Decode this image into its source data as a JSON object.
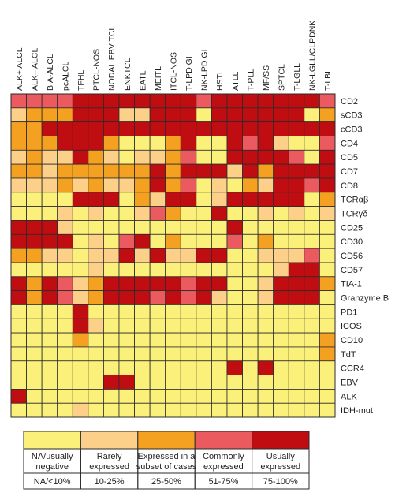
{
  "colors": {
    "na": "#fbf07a",
    "rare": "#fcd089",
    "subset": "#f4a021",
    "common": "#ea5a5f",
    "usual": "#c00d12",
    "grid": "#2b2b2b",
    "text": "#231f20"
  },
  "chart_data": {
    "type": "heatmap",
    "columns": [
      "ALK+ ALCL",
      "ALK– ALCL",
      "BIA-ALCL",
      "pcALCL",
      "TFHL",
      "PTCL-NOS",
      "NODAL EBV TCL",
      "ENKTCL",
      "EATL",
      "MEITL",
      "ITCL-NOS",
      "T-LPD GI",
      "NK-LPD GI",
      "HSTL",
      "ATLL",
      "T-PLL",
      "MF/SS",
      "SPTCL",
      "T-LGLL",
      "NK-LGLL/CLPDNK",
      "T-LBL"
    ],
    "rows": [
      "CD2",
      "sCD3",
      "cCD3",
      "CD4",
      "CD5",
      "CD7",
      "CD8",
      "TCRαβ",
      "TCRγδ",
      "CD25",
      "CD30",
      "CD56",
      "CD57",
      "TIA-1",
      "Granzyme B",
      "PD1",
      "ICOS",
      "CD10",
      "TdT",
      "CCR4",
      "EBV",
      "ALK",
      "IDH-mut"
    ],
    "matrix": [
      [
        3,
        3,
        3,
        3,
        4,
        4,
        4,
        4,
        4,
        4,
        4,
        4,
        3,
        4,
        4,
        4,
        4,
        4,
        4,
        4,
        3
      ],
      [
        1,
        2,
        2,
        2,
        4,
        4,
        4,
        1,
        1,
        4,
        4,
        4,
        0,
        4,
        4,
        4,
        4,
        4,
        4,
        0,
        2
      ],
      [
        2,
        2,
        4,
        4,
        4,
        4,
        4,
        4,
        4,
        4,
        4,
        4,
        4,
        4,
        4,
        4,
        4,
        4,
        4,
        4,
        4
      ],
      [
        2,
        2,
        2,
        4,
        4,
        4,
        2,
        0,
        0,
        0,
        2,
        4,
        0,
        0,
        4,
        3,
        4,
        1,
        0,
        0,
        3
      ],
      [
        1,
        2,
        1,
        1,
        4,
        2,
        1,
        0,
        1,
        1,
        2,
        3,
        0,
        0,
        4,
        4,
        4,
        4,
        3,
        0,
        4
      ],
      [
        2,
        2,
        1,
        2,
        2,
        2,
        2,
        2,
        2,
        4,
        2,
        4,
        4,
        4,
        1,
        4,
        2,
        4,
        4,
        4,
        4
      ],
      [
        1,
        1,
        1,
        2,
        1,
        2,
        1,
        1,
        2,
        4,
        2,
        3,
        0,
        1,
        0,
        2,
        1,
        4,
        4,
        3,
        4
      ],
      [
        0,
        0,
        0,
        0,
        4,
        4,
        4,
        0,
        2,
        1,
        4,
        4,
        0,
        1,
        4,
        4,
        4,
        4,
        4,
        0,
        2
      ],
      [
        0,
        0,
        0,
        1,
        0,
        1,
        0,
        0,
        1,
        3,
        2,
        0,
        0,
        4,
        0,
        0,
        1,
        0,
        1,
        0,
        1
      ],
      [
        4,
        4,
        4,
        1,
        0,
        0,
        0,
        0,
        0,
        0,
        0,
        0,
        0,
        0,
        4,
        0,
        0,
        0,
        0,
        0,
        0
      ],
      [
        4,
        4,
        4,
        4,
        0,
        1,
        0,
        3,
        4,
        0,
        2,
        0,
        0,
        0,
        3,
        0,
        2,
        0,
        0,
        0,
        0
      ],
      [
        2,
        2,
        1,
        1,
        0,
        1,
        1,
        4,
        1,
        4,
        1,
        1,
        4,
        4,
        0,
        0,
        1,
        1,
        1,
        3,
        0
      ],
      [
        0,
        0,
        0,
        0,
        0,
        1,
        0,
        0,
        0,
        0,
        0,
        0,
        0,
        0,
        0,
        0,
        0,
        1,
        4,
        4,
        0
      ],
      [
        4,
        2,
        4,
        3,
        1,
        2,
        4,
        4,
        4,
        4,
        4,
        3,
        4,
        4,
        0,
        0,
        1,
        4,
        4,
        4,
        2
      ],
      [
        4,
        2,
        4,
        3,
        1,
        2,
        4,
        4,
        4,
        3,
        4,
        3,
        4,
        1,
        0,
        0,
        1,
        4,
        4,
        4,
        0
      ],
      [
        0,
        0,
        0,
        0,
        4,
        0,
        0,
        0,
        0,
        0,
        0,
        0,
        0,
        0,
        0,
        0,
        0,
        0,
        0,
        0,
        0
      ],
      [
        0,
        0,
        0,
        0,
        4,
        1,
        0,
        0,
        0,
        0,
        0,
        0,
        0,
        0,
        0,
        0,
        0,
        0,
        0,
        0,
        0
      ],
      [
        0,
        0,
        0,
        0,
        2,
        0,
        0,
        0,
        0,
        0,
        0,
        0,
        0,
        0,
        0,
        0,
        0,
        0,
        0,
        0,
        2
      ],
      [
        0,
        0,
        0,
        0,
        0,
        0,
        0,
        0,
        0,
        0,
        0,
        0,
        0,
        0,
        0,
        0,
        0,
        0,
        0,
        0,
        2
      ],
      [
        0,
        0,
        0,
        0,
        0,
        0,
        0,
        0,
        0,
        0,
        0,
        0,
        0,
        0,
        4,
        0,
        4,
        0,
        0,
        0,
        0
      ],
      [
        0,
        0,
        0,
        0,
        0,
        0,
        4,
        4,
        0,
        0,
        0,
        0,
        0,
        0,
        0,
        0,
        0,
        0,
        0,
        0,
        0
      ],
      [
        4,
        0,
        0,
        0,
        0,
        0,
        0,
        0,
        0,
        0,
        0,
        0,
        0,
        0,
        0,
        0,
        0,
        0,
        0,
        0,
        0
      ],
      [
        0,
        0,
        0,
        0,
        1,
        0,
        0,
        0,
        0,
        0,
        0,
        0,
        0,
        0,
        0,
        0,
        0,
        0,
        0,
        0,
        0
      ]
    ],
    "legend": [
      {
        "label": "NA/usually negative",
        "range": "NA/<10%",
        "color_key": "na"
      },
      {
        "label": "Rarely expressed",
        "range": "10-25%",
        "color_key": "rare"
      },
      {
        "label": "Expressed in a subset of cases",
        "range": "25-50%",
        "color_key": "subset"
      },
      {
        "label": "Commonly expressed",
        "range": "51-75%",
        "color_key": "common"
      },
      {
        "label": "Usually expressed",
        "range": "75-100%",
        "color_key": "usual"
      }
    ],
    "legend_lines": [
      [
        "NA/usually",
        "negative"
      ],
      [
        "Rarely",
        "expressed"
      ],
      [
        "Expressed in a",
        "subset of cases"
      ],
      [
        "Commonly",
        "expressed"
      ],
      [
        "Usually",
        "expressed"
      ]
    ]
  }
}
